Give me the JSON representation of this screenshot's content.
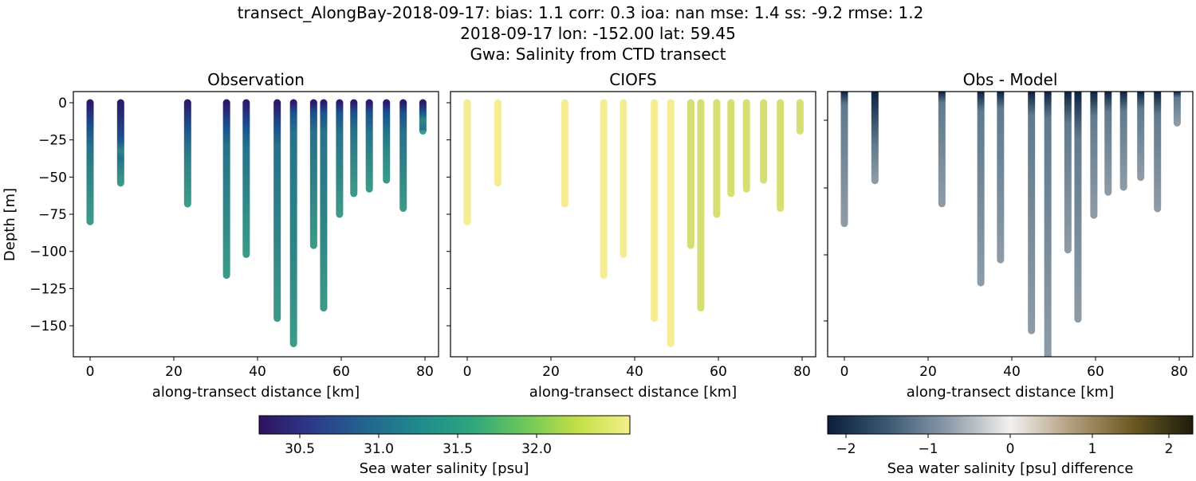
{
  "title_lines": [
    "transect_AlongBay-2018-09-17: bias: 1.1  corr: 0.3  ioa: nan  mse: 1.4  ss: -9.2  rmse: 1.2",
    "2018-09-17 lon: -152.00 lat: 59.45",
    "Gwa: Salinity from CTD transect"
  ],
  "chart_data": [
    {
      "type": "scatter",
      "title": "Observation",
      "xlabel": "along-transect distance [km]",
      "ylabel": "Depth [m]",
      "xticks": [
        0,
        20,
        40,
        60,
        80
      ],
      "yticks": [
        0,
        -25,
        -50,
        -75,
        -100,
        -125,
        -150
      ],
      "xlim": [
        -4,
        83
      ],
      "ylim": [
        -171,
        7
      ],
      "cast_x_km": [
        0,
        7.3,
        23.3,
        32.6,
        37.3,
        44.7,
        48.6,
        53.4,
        55.8,
        59.6,
        63.0,
        66.7,
        70.8,
        74.8,
        79.5
      ],
      "cast_max_depth_m": [
        80,
        54,
        68,
        116,
        102,
        145,
        162,
        96,
        138,
        75,
        61,
        58,
        52,
        71,
        19
      ],
      "colors": [
        "#2b1a6e",
        "#1a4f8d",
        "#25728a",
        "#2f8487",
        "#3b9a88"
      ]
    },
    {
      "type": "scatter",
      "title": "CIOFS",
      "xlabel": "along-transect distance [km]",
      "xticks": [
        0,
        20,
        40,
        60,
        80
      ],
      "colors_left": "#f6ec92",
      "colors_right": "#d6e072"
    },
    {
      "type": "scatter",
      "title": "Obs - Model",
      "xlabel": "along-transect distance [km]",
      "xticks": [
        0,
        20,
        40,
        60,
        80
      ],
      "colors": [
        "#0c2340",
        "#5f7a8e",
        "#8d9ba6"
      ]
    }
  ],
  "colorbars": [
    {
      "label": "Sea water salinity [psu]",
      "ticks": [
        "30.5",
        "31.0",
        "31.5",
        "32.0"
      ],
      "range": [
        30.24,
        32.16
      ],
      "stops": [
        "#30125f",
        "#2b3a8c",
        "#23648e",
        "#1f8a8c",
        "#2ca57e",
        "#6cc75a",
        "#c2df44",
        "#f4ef8a"
      ]
    },
    {
      "label": "Sea water salinity [psu] difference",
      "ticks": [
        "−2",
        "−1",
        "0",
        "1",
        "2"
      ],
      "range": [
        -2.25,
        2.25
      ],
      "stops": [
        "#0a1e3a",
        "#3c5a75",
        "#8d9ca9",
        "#f2f1ef",
        "#b29e7e",
        "#6c5a22",
        "#1d1d0c"
      ]
    }
  ]
}
